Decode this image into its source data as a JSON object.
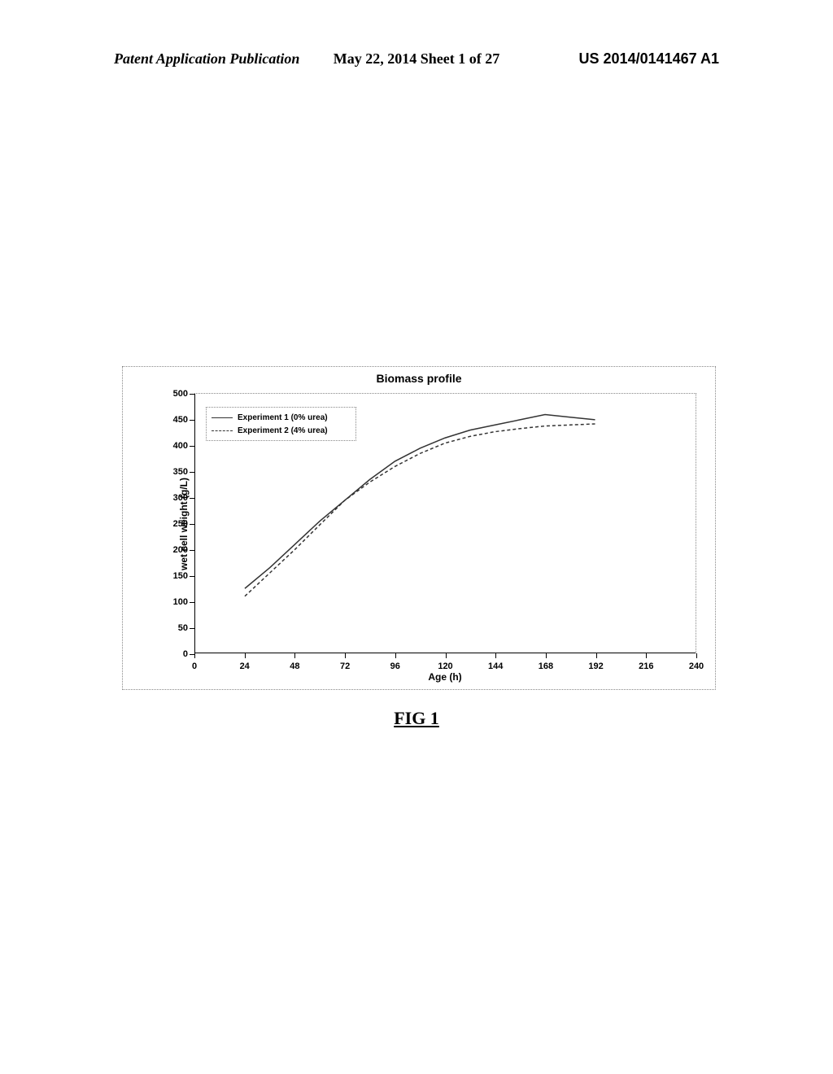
{
  "header": {
    "left": "Patent Application Publication",
    "center": "May 22, 2014  Sheet 1 of 27",
    "right": "US 2014/0141467 A1"
  },
  "figure_caption": "FIG 1",
  "chart": {
    "type": "line",
    "title": "Biomass profile",
    "xlabel": "Age (h)",
    "ylabel": "wet cell weight (g/L)",
    "xlim": [
      0,
      240
    ],
    "ylim": [
      0,
      500
    ],
    "xtick_step": 24,
    "ytick_step": 50,
    "title_fontsize": 14,
    "label_fontsize": 12,
    "tick_fontsize": 11,
    "background_color": "#ffffff",
    "border_style": "dotted",
    "border_color": "#888888",
    "axis_color": "#000000",
    "series": [
      {
        "name": "Experiment 1 (0% urea)",
        "color": "#333333",
        "style": "solid",
        "width": 1.5,
        "x": [
          24,
          36,
          48,
          60,
          72,
          84,
          96,
          108,
          120,
          132,
          144,
          156,
          168,
          180,
          192
        ],
        "y": [
          125,
          165,
          210,
          255,
          295,
          335,
          370,
          395,
          415,
          430,
          440,
          450,
          460,
          455,
          450
        ]
      },
      {
        "name": "Experiment 2 (4% urea)",
        "color": "#333333",
        "style": "dashed",
        "width": 1.5,
        "x": [
          24,
          36,
          48,
          60,
          72,
          84,
          96,
          108,
          120,
          132,
          144,
          156,
          168,
          180,
          192
        ],
        "y": [
          110,
          155,
          200,
          248,
          295,
          330,
          360,
          385,
          405,
          418,
          427,
          433,
          438,
          440,
          442
        ]
      }
    ],
    "legend": {
      "position": "upper-left",
      "border_style": "dotted",
      "border_color": "#888888",
      "fontsize": 10
    }
  }
}
